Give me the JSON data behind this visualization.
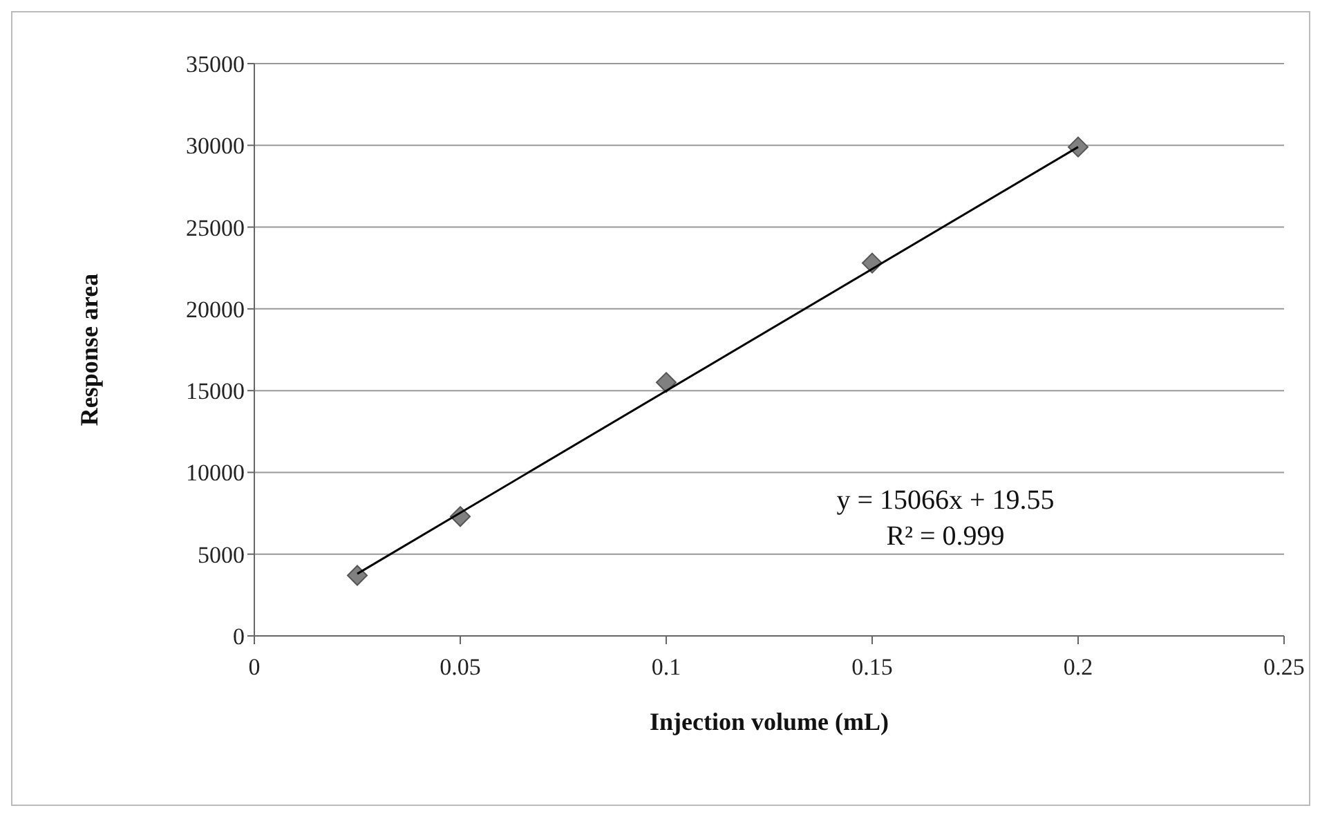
{
  "chart_data": {
    "type": "scatter",
    "xlabel": "Injection volume (mL)",
    "ylabel": "Response area",
    "x": [
      0.025,
      0.05,
      0.1,
      0.15,
      0.2
    ],
    "series": [
      {
        "color": "#808080",
        "values": [
          3700,
          7300,
          15500,
          22800,
          29900
        ],
        "marker": "diamond"
      },
      {
        "type": "line",
        "color": "#000000",
        "x": [
          0.025,
          0.2
        ],
        "values": [
          3800,
          29900
        ],
        "marker": "none",
        "line_style": "solid"
      }
    ],
    "xlim": [
      0,
      0.25
    ],
    "xticks": [
      0,
      0.05,
      0.1,
      0.15,
      0.2,
      0.25
    ],
    "ylim": [
      0,
      35000
    ],
    "yticks": [
      0,
      5000,
      10000,
      15000,
      20000,
      25000,
      30000,
      35000
    ],
    "grid": "y",
    "annotations": [
      "y = 15066x + 19.55",
      "R² = 0.999"
    ]
  }
}
